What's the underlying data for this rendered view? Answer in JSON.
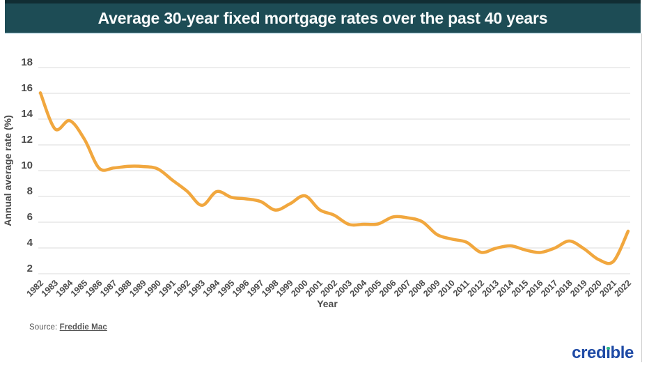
{
  "header": {
    "title": "Average 30-year fixed mortgage rates over the past 40 years"
  },
  "chart_data": {
    "type": "line",
    "title": "Average 30-year fixed mortgage rates over the past 40 years",
    "xlabel": "Year",
    "ylabel": "Annual average rate (%)",
    "x": [
      1982,
      1983,
      1984,
      1985,
      1986,
      1987,
      1988,
      1989,
      1990,
      1991,
      1992,
      1993,
      1994,
      1995,
      1996,
      1997,
      1998,
      1999,
      2000,
      2001,
      2002,
      2003,
      2004,
      2005,
      2006,
      2007,
      2008,
      2009,
      2010,
      2011,
      2012,
      2013,
      2014,
      2015,
      2016,
      2017,
      2018,
      2019,
      2020,
      2021,
      2022
    ],
    "values": [
      16.04,
      13.24,
      13.88,
      12.43,
      10.19,
      10.21,
      10.34,
      10.32,
      10.13,
      9.25,
      8.39,
      7.31,
      8.38,
      7.93,
      7.81,
      7.6,
      6.94,
      7.44,
      8.05,
      6.97,
      6.54,
      5.83,
      5.84,
      5.87,
      6.41,
      6.34,
      6.03,
      5.04,
      4.69,
      4.45,
      3.66,
      3.98,
      4.17,
      3.85,
      3.65,
      3.99,
      4.54,
      3.94,
      3.1,
      2.96,
      5.3
    ],
    "ylim": [
      2,
      18
    ],
    "yticks": [
      2,
      4,
      6,
      8,
      10,
      12,
      14,
      16,
      18
    ],
    "grid": "horizontal",
    "legend": "none",
    "line_color": "#F1A73E",
    "line_width": 4.5
  },
  "source": {
    "prefix": "Source: ",
    "link_label": "Freddie Mac"
  },
  "branding": {
    "logo_text": "credible",
    "logo_color": "#1E4AA5",
    "dot_color": "#2EB88A"
  },
  "colors": {
    "banner_bg": "#1D4C55",
    "banner_top_edge": "#112D33",
    "grid_line": "#E2E2E2",
    "axis_text": "#4A4A4A",
    "right_border": "#D0D0D0"
  }
}
